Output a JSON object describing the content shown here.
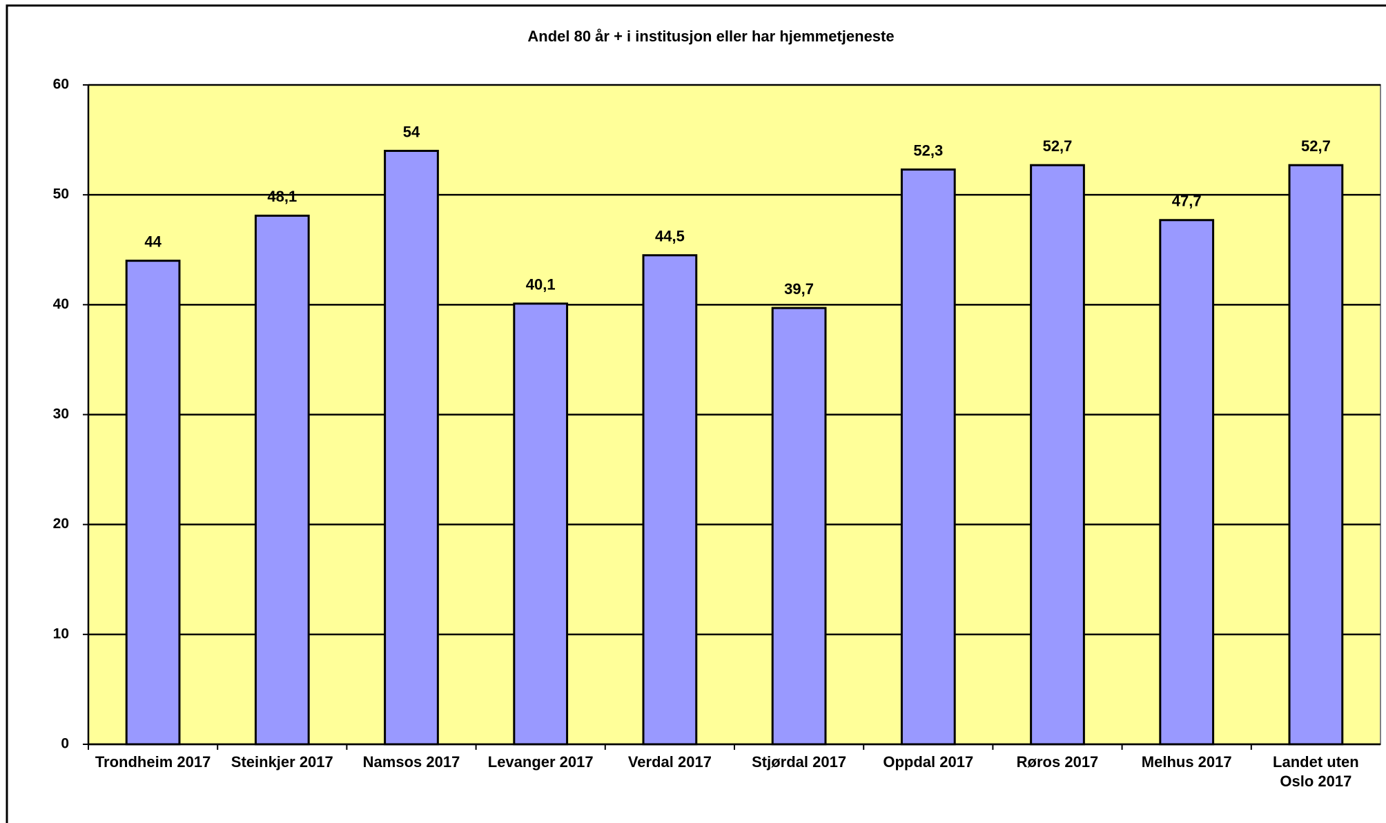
{
  "chart_data": {
    "type": "bar",
    "title": "Andel 80 år + i institusjon eller har hjemmetjeneste",
    "categories": [
      "Trondheim 2017",
      "Steinkjer 2017",
      "Namsos 2017",
      "Levanger 2017",
      "Verdal 2017",
      "Stjørdal 2017",
      "Oppdal 2017",
      "Røros 2017",
      "Melhus 2017",
      "Landet uten Oslo 2017"
    ],
    "values": [
      44,
      48.1,
      54,
      40.1,
      44.5,
      39.7,
      52.3,
      52.7,
      47.7,
      52.7
    ],
    "value_labels": [
      "44",
      "48,1",
      "54",
      "40,1",
      "44,5",
      "39,7",
      "52,3",
      "52,7",
      "47,7",
      "52,7"
    ],
    "color": "#9999ff",
    "plot_background": "#ffff99",
    "ylim": [
      0,
      60
    ],
    "yticks": [
      0,
      10,
      20,
      30,
      40,
      50,
      60
    ],
    "grid": true
  }
}
